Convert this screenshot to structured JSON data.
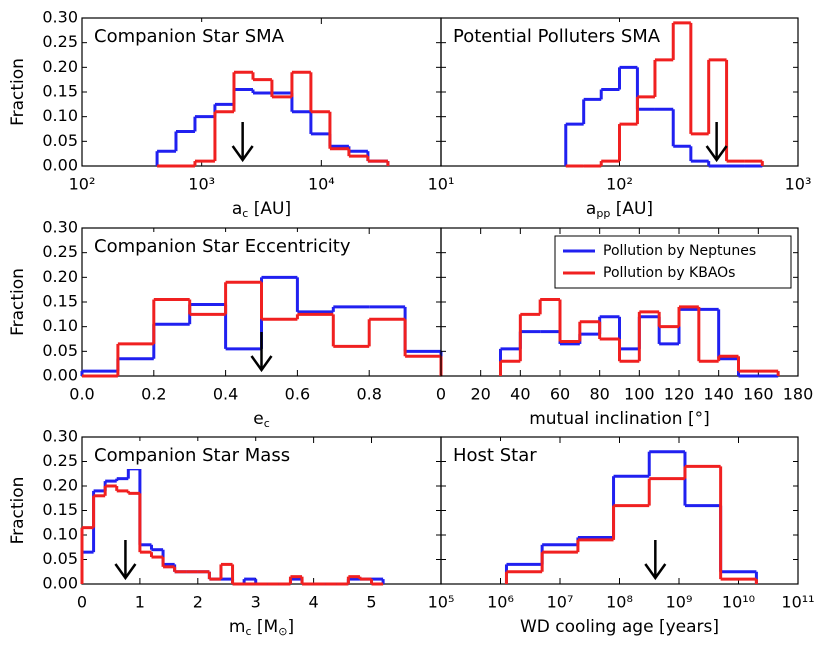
{
  "chart_data": [
    {
      "type": "histogram",
      "title": "Companion Star SMA",
      "xlabel": [
        {
          "text": "a"
        },
        {
          "sub": "c"
        },
        {
          "text": " [AU]"
        }
      ],
      "ylabel": "Fraction",
      "xscale": "log",
      "xlim": [
        100,
        100000
      ],
      "xticks": [
        {
          "value": 100,
          "label": "10²"
        },
        {
          "value": 1000,
          "label": "10³"
        },
        {
          "value": 10000,
          "label": "10⁴"
        }
      ],
      "ylim": [
        0,
        0.3
      ],
      "yticks": [
        {
          "value": 0,
          "label": "0.00"
        },
        {
          "value": 0.05,
          "label": "0.05"
        },
        {
          "value": 0.1,
          "label": "0.10"
        },
        {
          "value": 0.15,
          "label": "0.15"
        },
        {
          "value": 0.2,
          "label": "0.20"
        },
        {
          "value": 0.25,
          "label": "0.25"
        },
        {
          "value": 0.3,
          "label": "0.30"
        }
      ],
      "bins": [
        424,
        610,
        879,
        1291,
        1862,
        2685,
        3864,
        5680,
        8180,
        11800,
        17000,
        24500,
        36000
      ],
      "series": [
        {
          "name": "Pollution by Neptunes",
          "color": "#2020f0",
          "values": [
            0.03,
            0.07,
            0.1,
            0.125,
            0.155,
            0.148,
            0.148,
            0.11,
            0.065,
            0.04,
            0.03,
            0.01
          ]
        },
        {
          "name": "Pollution by KBAOs",
          "color": "#f02020",
          "values": [
            0,
            0,
            0.01,
            0.11,
            0.19,
            0.175,
            0.14,
            0.19,
            0.11,
            0.035,
            0.02,
            0.01
          ]
        }
      ],
      "arrow_x": 2200
    },
    {
      "type": "histogram",
      "title": "Potential Polluters SMA",
      "xlabel": [
        {
          "text": "a"
        },
        {
          "sub": "pp"
        },
        {
          "text": " [AU]"
        }
      ],
      "xscale": "log",
      "xlim": [
        10,
        1000
      ],
      "xticks": [
        {
          "value": 10,
          "label": "10¹"
        },
        {
          "value": 100,
          "label": "10²"
        },
        {
          "value": 1000,
          "label": "10³"
        }
      ],
      "ylim": [
        0,
        0.3
      ],
      "yticks": [
        0,
        0.05,
        0.1,
        0.15,
        0.2,
        0.25,
        0.3
      ],
      "bins": [
        50,
        63,
        79,
        100,
        126,
        158,
        200,
        251,
        316,
        398,
        501,
        631
      ],
      "series": [
        {
          "name": "Pollution by Neptunes",
          "color": "#2020f0",
          "values": [
            0.085,
            0.135,
            0.155,
            0.2,
            0.115,
            0.115,
            0.04,
            0.01,
            0,
            0,
            0
          ]
        },
        {
          "name": "Pollution by KBAOs",
          "color": "#f02020",
          "values": [
            0,
            0,
            0.01,
            0.085,
            0.14,
            0.215,
            0.29,
            0.065,
            0.215,
            0.01,
            0.01
          ]
        }
      ],
      "arrow_x": 350
    },
    {
      "type": "histogram",
      "title": "Companion Star Eccentricity",
      "xlabel": [
        {
          "text": "e"
        },
        {
          "sub": "c"
        }
      ],
      "ylabel": "Fraction",
      "xscale": "linear",
      "xlim": [
        0,
        1
      ],
      "xticks": [
        {
          "value": 0,
          "label": "0.0"
        },
        {
          "value": 0.2,
          "label": "0.2"
        },
        {
          "value": 0.4,
          "label": "0.4"
        },
        {
          "value": 0.6,
          "label": "0.6"
        },
        {
          "value": 0.8,
          "label": "0.8"
        }
      ],
      "ylim": [
        0,
        0.3
      ],
      "yticks": [
        {
          "value": 0,
          "label": "0.00"
        },
        {
          "value": 0.05,
          "label": "0.05"
        },
        {
          "value": 0.1,
          "label": "0.10"
        },
        {
          "value": 0.15,
          "label": "0.15"
        },
        {
          "value": 0.2,
          "label": "0.20"
        },
        {
          "value": 0.25,
          "label": "0.25"
        },
        {
          "value": 0.3,
          "label": "0.30"
        }
      ],
      "bins": [
        0,
        0.1,
        0.2,
        0.3,
        0.4,
        0.5,
        0.6,
        0.7,
        0.8,
        0.9,
        1
      ],
      "series": [
        {
          "name": "Pollution by Neptunes",
          "color": "#2020f0",
          "values": [
            0.01,
            0.035,
            0.105,
            0.145,
            0.055,
            0.2,
            0.13,
            0.14,
            0.14,
            0.05
          ]
        },
        {
          "name": "Pollution by KBAOs",
          "color": "#f02020",
          "values": [
            0,
            0.065,
            0.155,
            0.125,
            0.19,
            0.115,
            0.125,
            0.06,
            0.115,
            0.04
          ]
        }
      ],
      "arrow_x": 0.5
    },
    {
      "type": "histogram",
      "xlabel": [
        {
          "text": "mutual inclination [°]"
        }
      ],
      "xscale": "linear",
      "xlim": [
        0,
        180
      ],
      "xticks": [
        0,
        20,
        40,
        60,
        80,
        100,
        120,
        140,
        160,
        180
      ],
      "ylim": [
        0,
        0.3
      ],
      "yticks": [
        0,
        0.05,
        0.1,
        0.15,
        0.2,
        0.25,
        0.3
      ],
      "bins": [
        30,
        40,
        50,
        60,
        70,
        80,
        90,
        100,
        110,
        120,
        130,
        140,
        150,
        160,
        170
      ],
      "series": [
        {
          "name": "Pollution by Neptunes",
          "color": "#2020f0",
          "values": [
            0.055,
            0.09,
            0.09,
            0.065,
            0.085,
            0.12,
            0.055,
            0.12,
            0.065,
            0.135,
            0.135,
            0.035,
            0,
            0
          ]
        },
        {
          "name": "Pollution by KBAOs",
          "color": "#f02020",
          "values": [
            0.03,
            0.125,
            0.155,
            0.07,
            0.11,
            0.075,
            0.03,
            0.13,
            0.1,
            0.14,
            0.03,
            0.04,
            0.01,
            0.01
          ]
        }
      ],
      "legend": "upper right"
    },
    {
      "type": "histogram",
      "title": "Companion Star Mass",
      "xlabel": [
        {
          "text": "m"
        },
        {
          "sub": "c"
        },
        {
          "text": " [M"
        },
        {
          "sub": "⊙"
        },
        {
          "text": "]"
        }
      ],
      "ylabel": "Fraction",
      "xscale": "linear",
      "xlim": [
        0,
        6.2
      ],
      "xticks": [
        0,
        1,
        2,
        3,
        4,
        5
      ],
      "ylim": [
        0,
        0.3
      ],
      "yticks": [
        {
          "value": 0,
          "label": "0.00"
        },
        {
          "value": 0.05,
          "label": "0.05"
        },
        {
          "value": 0.1,
          "label": "0.10"
        },
        {
          "value": 0.15,
          "label": "0.15"
        },
        {
          "value": 0.2,
          "label": "0.20"
        },
        {
          "value": 0.25,
          "label": "0.25"
        },
        {
          "value": 0.3,
          "label": "0.30"
        }
      ],
      "bins": [
        0,
        0.2,
        0.4,
        0.6,
        0.8,
        1,
        1.2,
        1.4,
        1.6,
        1.8,
        2,
        2.2,
        2.4,
        2.6,
        2.8,
        3,
        3.2,
        3.4,
        3.6,
        3.8,
        4,
        4.2,
        4.4,
        4.6,
        4.8,
        5,
        5.2
      ],
      "series": [
        {
          "name": "Pollution by Neptunes",
          "color": "#2020f0",
          "values": [
            0.065,
            0.19,
            0.21,
            0.215,
            0.235,
            0.08,
            0.07,
            0.04,
            0.025,
            0.025,
            0.025,
            0.01,
            0.01,
            0,
            0.01,
            0,
            0,
            0,
            0.01,
            0,
            0,
            0,
            0,
            0.01,
            0.01,
            0.01
          ]
        },
        {
          "name": "Pollution by KBAOs",
          "color": "#f02020",
          "values": [
            0.115,
            0.18,
            0.2,
            0.19,
            0.185,
            0.065,
            0.055,
            0.035,
            0.025,
            0.025,
            0.025,
            0.01,
            0.04,
            0,
            0,
            0,
            0,
            0,
            0.015,
            0,
            0,
            0,
            0,
            0.015,
            0.01,
            0
          ]
        }
      ],
      "arrow_x": 0.75
    },
    {
      "type": "histogram",
      "title": "Host Star",
      "xlabel": [
        {
          "text": "WD cooling age [years]"
        }
      ],
      "xscale": "log",
      "xlim": [
        100000,
        100000000000
      ],
      "xticks": [
        {
          "value": 100000,
          "label": "10⁵"
        },
        {
          "value": 1000000,
          "label": "10⁶"
        },
        {
          "value": 10000000,
          "label": "10⁷"
        },
        {
          "value": 100000000,
          "label": "10⁸"
        },
        {
          "value": 1000000000,
          "label": "10⁹"
        },
        {
          "value": 10000000000,
          "label": "10¹⁰"
        },
        {
          "value": 100000000000,
          "label": "10¹¹"
        }
      ],
      "ylim": [
        0,
        0.3
      ],
      "yticks": [
        0,
        0.05,
        0.1,
        0.15,
        0.2,
        0.25,
        0.3
      ],
      "bins": [
        1260000,
        5010000,
        20000000,
        79400000,
        316000000,
        1260000000,
        5010000000,
        20000000000
      ],
      "series": [
        {
          "name": "Pollution by Neptunes",
          "color": "#2020f0",
          "values": [
            0.04,
            0.08,
            0.095,
            0.22,
            0.27,
            0.16,
            0.025
          ]
        },
        {
          "name": "Pollution by KBAOs",
          "color": "#f02020",
          "values": [
            0.025,
            0.065,
            0.09,
            0.16,
            0.215,
            0.24,
            0.01
          ]
        }
      ],
      "arrow_x": 400000000
    }
  ]
}
